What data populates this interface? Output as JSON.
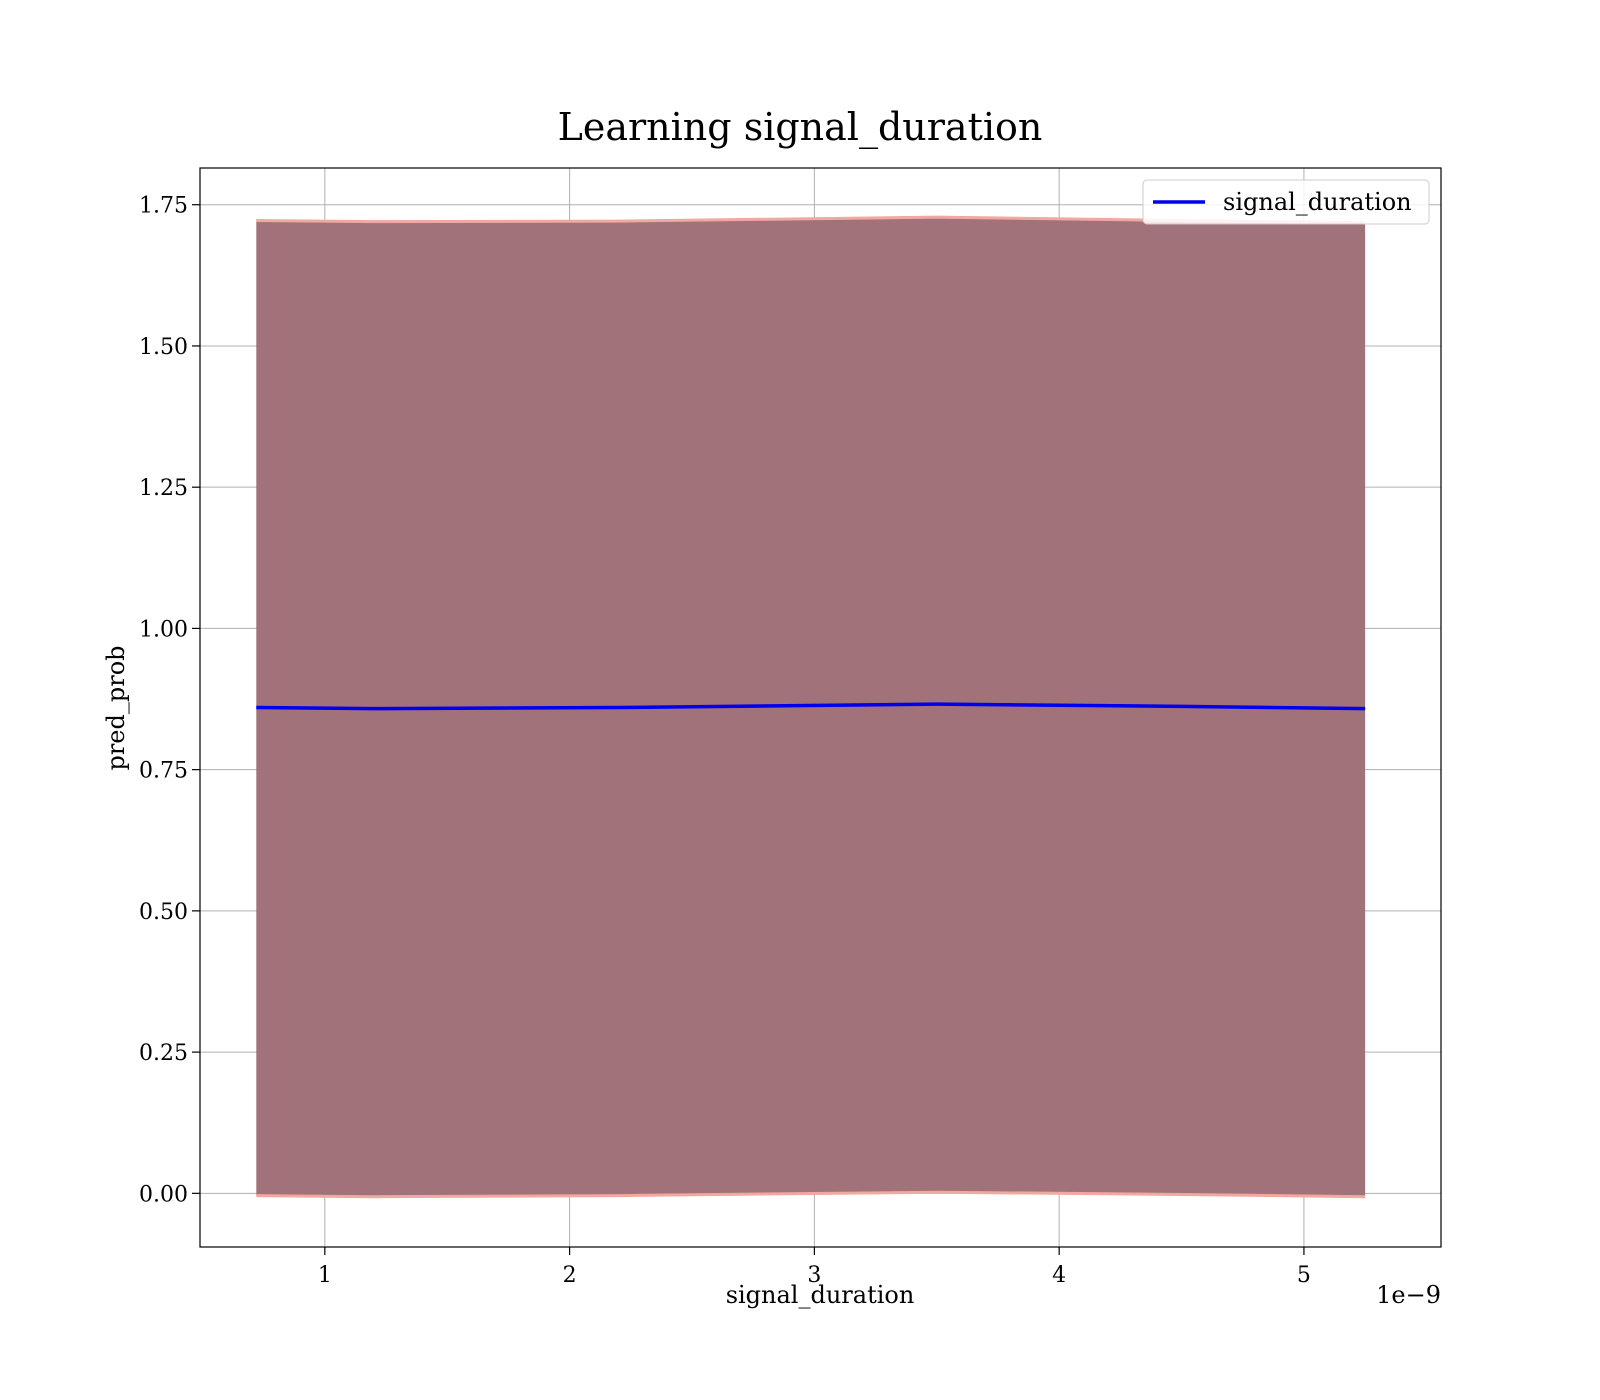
{
  "chart_data": {
    "type": "line",
    "title": "Learning signal_duration",
    "xlabel": "signal_duration",
    "ylabel": "pred_prob",
    "x_offset_label": "1e−9",
    "xlim": [
      0.49,
      5.56
    ],
    "ylim": [
      -0.095,
      1.815
    ],
    "xticks": [
      1,
      2,
      3,
      4,
      5
    ],
    "xtick_labels": [
      "1",
      "2",
      "3",
      "4",
      "5"
    ],
    "yticks": [
      0.0,
      0.25,
      0.5,
      0.75,
      1.0,
      1.25,
      1.5,
      1.75
    ],
    "ytick_labels": [
      "0.00",
      "0.25",
      "0.50",
      "0.75",
      "1.00",
      "1.25",
      "1.50",
      "1.75"
    ],
    "grid": true,
    "legend": {
      "position": "top-right",
      "entries": [
        "signal_duration"
      ]
    },
    "series": [
      {
        "name": "signal_duration",
        "color": "#0000ee",
        "x": [
          0.72,
          1.2,
          2.2,
          3.5,
          4.5,
          5.25
        ],
        "y": [
          0.86,
          0.858,
          0.86,
          0.866,
          0.862,
          0.858
        ]
      }
    ],
    "band": {
      "fill_color": "#a1727a",
      "edge_color": "#f0a8a0",
      "x": [
        0.72,
        1.2,
        2.2,
        3.5,
        4.5,
        5.25
      ],
      "upper": [
        1.722,
        1.72,
        1.721,
        1.728,
        1.722,
        1.718
      ],
      "lower": [
        -0.004,
        -0.006,
        -0.004,
        0.002,
        -0.002,
        -0.006
      ]
    }
  }
}
